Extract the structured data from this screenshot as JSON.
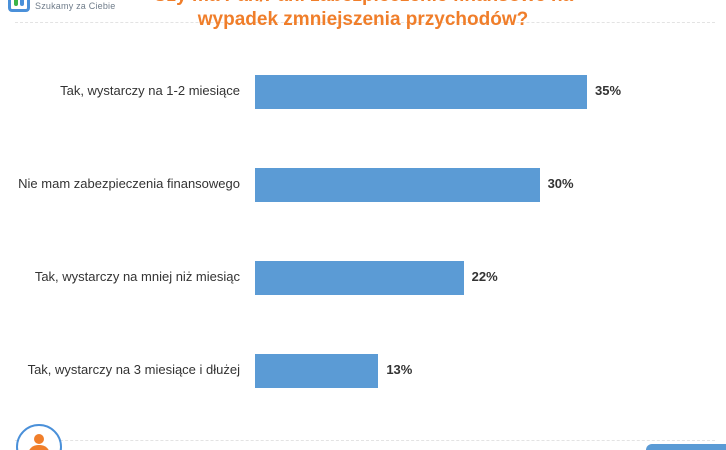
{
  "brand": {
    "tagline": "Szukamy za Ciebie",
    "accent_color": "#f07e2a",
    "logo_icon": "logo-icon"
  },
  "chart_data": {
    "type": "bar",
    "orientation": "horizontal",
    "title_lines": [
      "Czy ma Pan/Pani zabezpieczenie finansowe na",
      "wypadek zmniejszenia przychodów?"
    ],
    "categories": [
      "Tak, wystarczy na 1-2 miesiące",
      "Nie mam zabezpieczenia finansowego",
      "Tak, wystarczy na mniej niż miesiąc",
      "Tak, wystarczy na 3 miesiące i dłużej"
    ],
    "values": [
      35,
      30,
      22,
      13
    ],
    "value_labels": [
      "35%",
      "30%",
      "22%",
      "13%"
    ],
    "unit": "%",
    "xlim": [
      0,
      35
    ],
    "bar_color": "#5b9bd5",
    "grid": false,
    "legend": "none"
  },
  "footer": {
    "avatar_icon": "user-avatar-icon"
  }
}
